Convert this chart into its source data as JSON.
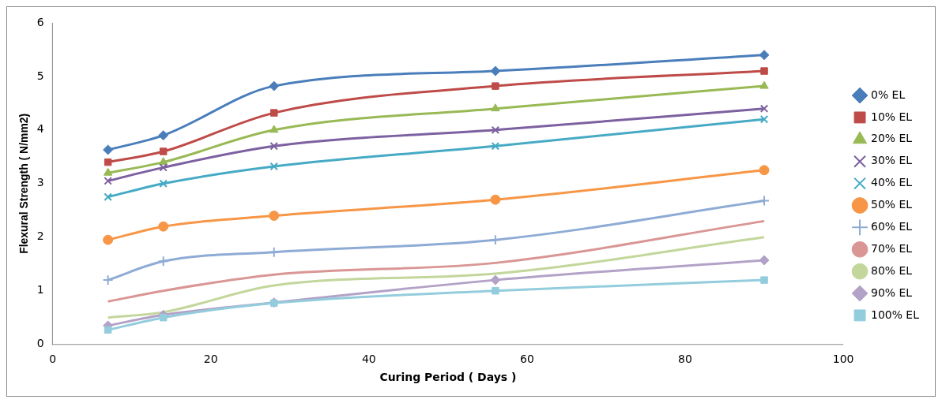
{
  "chart_data": {
    "type": "line",
    "xlabel": "Curing Period ( Days )",
    "ylabel": "Flexural Strength ( N/mm2)",
    "x": [
      7,
      14,
      28,
      56,
      90
    ],
    "xlim": [
      0,
      100
    ],
    "xticks": [
      0,
      20,
      40,
      60,
      80,
      100
    ],
    "ylim": [
      0,
      6
    ],
    "yticks": [
      0,
      1,
      2,
      3,
      4,
      5,
      6
    ],
    "grid": false,
    "legend": "right",
    "series": [
      {
        "name": "0% EL",
        "color": "#4a7ebb",
        "marker": "diamond",
        "values": [
          3.63,
          3.9,
          4.82,
          5.1,
          5.4
        ]
      },
      {
        "name": "10% EL",
        "color": "#be4b48",
        "marker": "square",
        "values": [
          3.4,
          3.6,
          4.32,
          4.82,
          5.1
        ]
      },
      {
        "name": "20% EL",
        "color": "#98b954",
        "marker": "triangle",
        "values": [
          3.2,
          3.4,
          4.0,
          4.4,
          4.82
        ]
      },
      {
        "name": "30% EL",
        "color": "#7d60a0",
        "marker": "cross",
        "values": [
          3.05,
          3.3,
          3.7,
          4.0,
          4.4
        ]
      },
      {
        "name": "40% EL",
        "color": "#46aac5",
        "marker": "cross",
        "values": [
          2.75,
          3.0,
          3.32,
          3.7,
          4.2
        ]
      },
      {
        "name": "50% EL",
        "color": "#f79646",
        "marker": "circle",
        "values": [
          1.95,
          2.2,
          2.4,
          2.7,
          3.25
        ]
      },
      {
        "name": "60% EL",
        "color": "#8eabd5",
        "marker": "plus",
        "values": [
          1.2,
          1.55,
          1.72,
          1.95,
          2.68
        ]
      },
      {
        "name": "70% EL",
        "color": "#d99694",
        "marker": "none",
        "values": [
          0.8,
          1.0,
          1.3,
          1.52,
          2.3
        ]
      },
      {
        "name": "80% EL",
        "color": "#c3d69b",
        "marker": "none",
        "values": [
          0.5,
          0.6,
          1.1,
          1.32,
          2.0
        ]
      },
      {
        "name": "90% EL",
        "color": "#b3a2c7",
        "marker": "diamond",
        "values": [
          0.35,
          0.55,
          0.78,
          1.2,
          1.57
        ]
      },
      {
        "name": "100% EL",
        "color": "#93cddd",
        "marker": "square",
        "values": [
          0.27,
          0.5,
          0.77,
          1.0,
          1.2
        ]
      }
    ]
  }
}
